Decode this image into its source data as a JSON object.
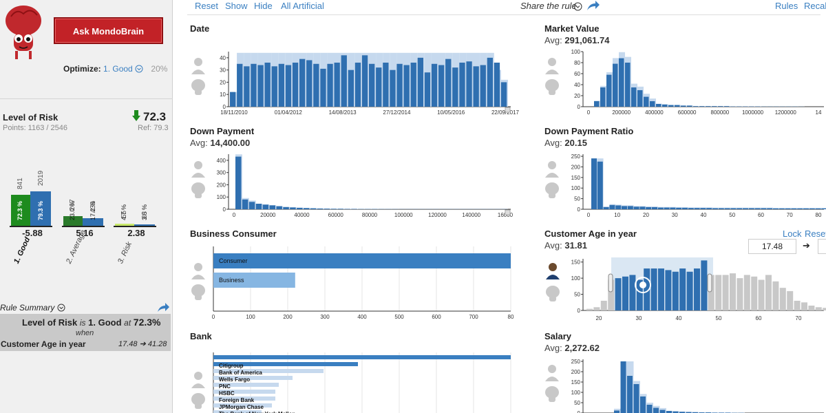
{
  "sidebar": {
    "ask_button": "Ask MondoBrain",
    "optimize_label": "Optimize:",
    "optimize_value": "1. Good",
    "optimize_pct": "20%",
    "risk_title": "Level of Risk",
    "risk_value": "72.3",
    "points": "Points: 1163 / 2546",
    "ref": "Ref: 79.3",
    "groups": [
      {
        "label": "1. Good",
        "score": "-5.88",
        "count_a": "841",
        "count_b": "2019",
        "pct_a": "72.3 %",
        "pct_b": "79.3 %",
        "share_a": 0.723,
        "share_b": 0.793
      },
      {
        "label": "2. Average",
        "score": "5.16",
        "count_a": "267",
        "count_b": "439",
        "pct_a": "23.0 %",
        "pct_b": "17.2 %",
        "share_a": 0.23,
        "share_b": 0.172
      },
      {
        "label": "3. Risk",
        "score": "2.38",
        "count_a": "55",
        "count_b": "88",
        "pct_a": "4.7 %",
        "pct_b": "3.5 %",
        "share_a": 0.047,
        "share_b": 0.035
      }
    ],
    "rule_summary_label": "Rule Summary",
    "summary": {
      "subject": "Level of Risk",
      "is_word": "is",
      "class": "1. Good",
      "at_word": "at",
      "pct": "72.3%",
      "when": "when",
      "condition": "Customer Age in year",
      "low": "17.48",
      "high": "41.28"
    }
  },
  "topbar": {
    "links": [
      "Reset",
      "Show",
      "Hide",
      "All Artificial"
    ],
    "share": "Share the rule",
    "right_links": [
      "Rules",
      "Recal"
    ]
  },
  "panels": {
    "date": {
      "title": "Date",
      "yticks": [
        "40",
        "30",
        "20",
        "10",
        "0"
      ],
      "xticks": [
        "18/11/2010",
        "01/04/2012",
        "14/08/2013",
        "27/12/2014",
        "10/05/2016",
        "22/09/2017"
      ]
    },
    "market_value": {
      "title": "Market Value",
      "avg_label": "Avg:",
      "avg": "291,061.74",
      "yticks": [
        "100",
        "80",
        "60",
        "40",
        "20",
        "0"
      ],
      "xticks": [
        "0",
        "200000",
        "400000",
        "600000",
        "800000",
        "1000000",
        "1200000",
        "14"
      ]
    },
    "down_payment": {
      "title": "Down Payment",
      "avg_label": "Avg:",
      "avg": "14,400.00",
      "yticks": [
        "400",
        "300",
        "200",
        "100",
        "0"
      ],
      "xticks": [
        "0",
        "20000",
        "40000",
        "60000",
        "80000",
        "100000",
        "120000",
        "140000",
        "16000"
      ]
    },
    "dp_ratio": {
      "title": "Down Payment Ratio",
      "avg_label": "Avg:",
      "avg": "20.15",
      "yticks": [
        "250",
        "200",
        "150",
        "100",
        "50",
        "0"
      ],
      "xticks": [
        "0",
        "10",
        "20",
        "30",
        "40",
        "50",
        "60",
        "70",
        "80"
      ]
    },
    "business": {
      "title": "Business Consumer",
      "bars": [
        "Consumer",
        "Business"
      ],
      "xticks": [
        "0",
        "100",
        "200",
        "300",
        "400",
        "500",
        "600",
        "700",
        "80"
      ]
    },
    "age": {
      "title": "Customer Age in year",
      "avg_label": "Avg:",
      "avg": "31.81",
      "lock": "Lock",
      "reset": "Reset",
      "range_low": "17.48",
      "yticks": [
        "150",
        "100",
        "50",
        "0"
      ],
      "xticks": [
        "20",
        "30",
        "40",
        "50",
        "60",
        "70"
      ]
    },
    "bank": {
      "title": "Bank",
      "bars": [
        "Citigroup",
        "Bank of America",
        "Wells Fargo",
        "PNC",
        "HSBC",
        "Foreign Bank",
        "JPMorgan Chase",
        "The Bank of New York Mellon"
      ]
    },
    "salary": {
      "title": "Salary",
      "avg_label": "Avg:",
      "avg": "2,272.62",
      "yticks": [
        "250",
        "200",
        "150",
        "100",
        "50",
        "0"
      ]
    }
  },
  "colors": {
    "accent": "#3a7fc1",
    "bar": "#2f6fb0",
    "bar_bg": "#c6d9ee",
    "good": "#1e8b1e",
    "brand_red": "#c22227",
    "grey_bar": "#c8c8c8"
  }
}
